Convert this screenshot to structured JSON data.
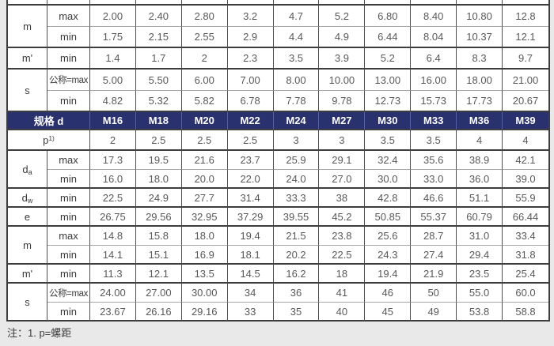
{
  "note": "注：1. p=螺距",
  "colors": {
    "page_bg": "#e9e9e9",
    "header_bg": "#2a316f",
    "header_text": "#ffffff"
  },
  "table": {
    "spec_header": {
      "label": "规格 d",
      "sizes": [
        "M16",
        "M18",
        "M20",
        "M22",
        "M24",
        "M27",
        "M30",
        "M33",
        "M36",
        "M39"
      ]
    },
    "pitch_row": {
      "label": {
        "base": "p",
        "sup": "1)"
      },
      "values": [
        "2",
        "2.5",
        "2.5",
        "2.5",
        "3",
        "3",
        "3.5",
        "3.5",
        "4",
        "4"
      ]
    },
    "top_groups": [
      {
        "label": {
          "base": "m"
        },
        "rows": [
          {
            "kind": "max",
            "values": [
              "2.00",
              "2.40",
              "2.80",
              "3.2",
              "4.7",
              "5.2",
              "6.80",
              "8.40",
              "10.80",
              "12.8"
            ]
          },
          {
            "kind": "min",
            "values": [
              "1.75",
              "2.15",
              "2.55",
              "2.9",
              "4.4",
              "4.9",
              "6.44",
              "8.04",
              "10.37",
              "12.1"
            ]
          }
        ]
      },
      {
        "label": {
          "base": "m'"
        },
        "rows": [
          {
            "kind": "min",
            "values": [
              "1.4",
              "1.7",
              "2",
              "2.3",
              "3.5",
              "3.9",
              "5.2",
              "6.4",
              "8.3",
              "9.7"
            ]
          }
        ]
      },
      {
        "label": {
          "base": "s"
        },
        "rows": [
          {
            "kind": "公称=max",
            "values": [
              "5.00",
              "5.50",
              "6.00",
              "7.00",
              "8.00",
              "10.00",
              "13.00",
              "16.00",
              "18.00",
              "21.00"
            ]
          },
          {
            "kind": "min",
            "values": [
              "4.82",
              "5.32",
              "5.82",
              "6.78",
              "7.78",
              "9.78",
              "12.73",
              "15.73",
              "17.73",
              "20.67"
            ]
          }
        ]
      }
    ],
    "bottom_groups": [
      {
        "label": {
          "base": "d",
          "sub": "a"
        },
        "rows": [
          {
            "kind": "max",
            "values": [
              "17.3",
              "19.5",
              "21.6",
              "23.7",
              "25.9",
              "29.1",
              "32.4",
              "35.6",
              "38.9",
              "42.1"
            ]
          },
          {
            "kind": "min",
            "values": [
              "16.0",
              "18.0",
              "20.0",
              "22.0",
              "24.0",
              "27.0",
              "30.0",
              "33.0",
              "36.0",
              "39.0"
            ]
          }
        ]
      },
      {
        "label": {
          "base": "d",
          "sub": "w"
        },
        "rows": [
          {
            "kind": "min",
            "values": [
              "22.5",
              "24.9",
              "27.7",
              "31.4",
              "33.3",
              "38",
              "42.8",
              "46.6",
              "51.1",
              "55.9"
            ]
          }
        ]
      },
      {
        "label": {
          "base": "e"
        },
        "rows": [
          {
            "kind": "min",
            "values": [
              "26.75",
              "29.56",
              "32.95",
              "37.29",
              "39.55",
              "45.2",
              "50.85",
              "55.37",
              "60.79",
              "66.44"
            ]
          }
        ]
      },
      {
        "label": {
          "base": "m"
        },
        "rows": [
          {
            "kind": "max",
            "values": [
              "14.8",
              "15.8",
              "18.0",
              "19.4",
              "21.5",
              "23.8",
              "25.6",
              "28.7",
              "31.0",
              "33.4"
            ]
          },
          {
            "kind": "min",
            "values": [
              "14.1",
              "15.1",
              "16.9",
              "18.1",
              "20.2",
              "22.5",
              "24.3",
              "27.4",
              "29.4",
              "31.8"
            ]
          }
        ]
      },
      {
        "label": {
          "base": "m'"
        },
        "rows": [
          {
            "kind": "min",
            "values": [
              "11.3",
              "12.1",
              "13.5",
              "14.5",
              "16.2",
              "18",
              "19.4",
              "21.9",
              "23.5",
              "25.4"
            ]
          }
        ]
      },
      {
        "label": {
          "base": "s"
        },
        "rows": [
          {
            "kind": "公称=max",
            "values": [
              "24.00",
              "27.00",
              "30.00",
              "34",
              "36",
              "41",
              "46",
              "50",
              "55.0",
              "60.0"
            ]
          },
          {
            "kind": "min",
            "values": [
              "23.67",
              "26.16",
              "29.16",
              "33",
              "35",
              "40",
              "45",
              "49",
              "53.8",
              "58.8"
            ]
          }
        ]
      }
    ]
  }
}
